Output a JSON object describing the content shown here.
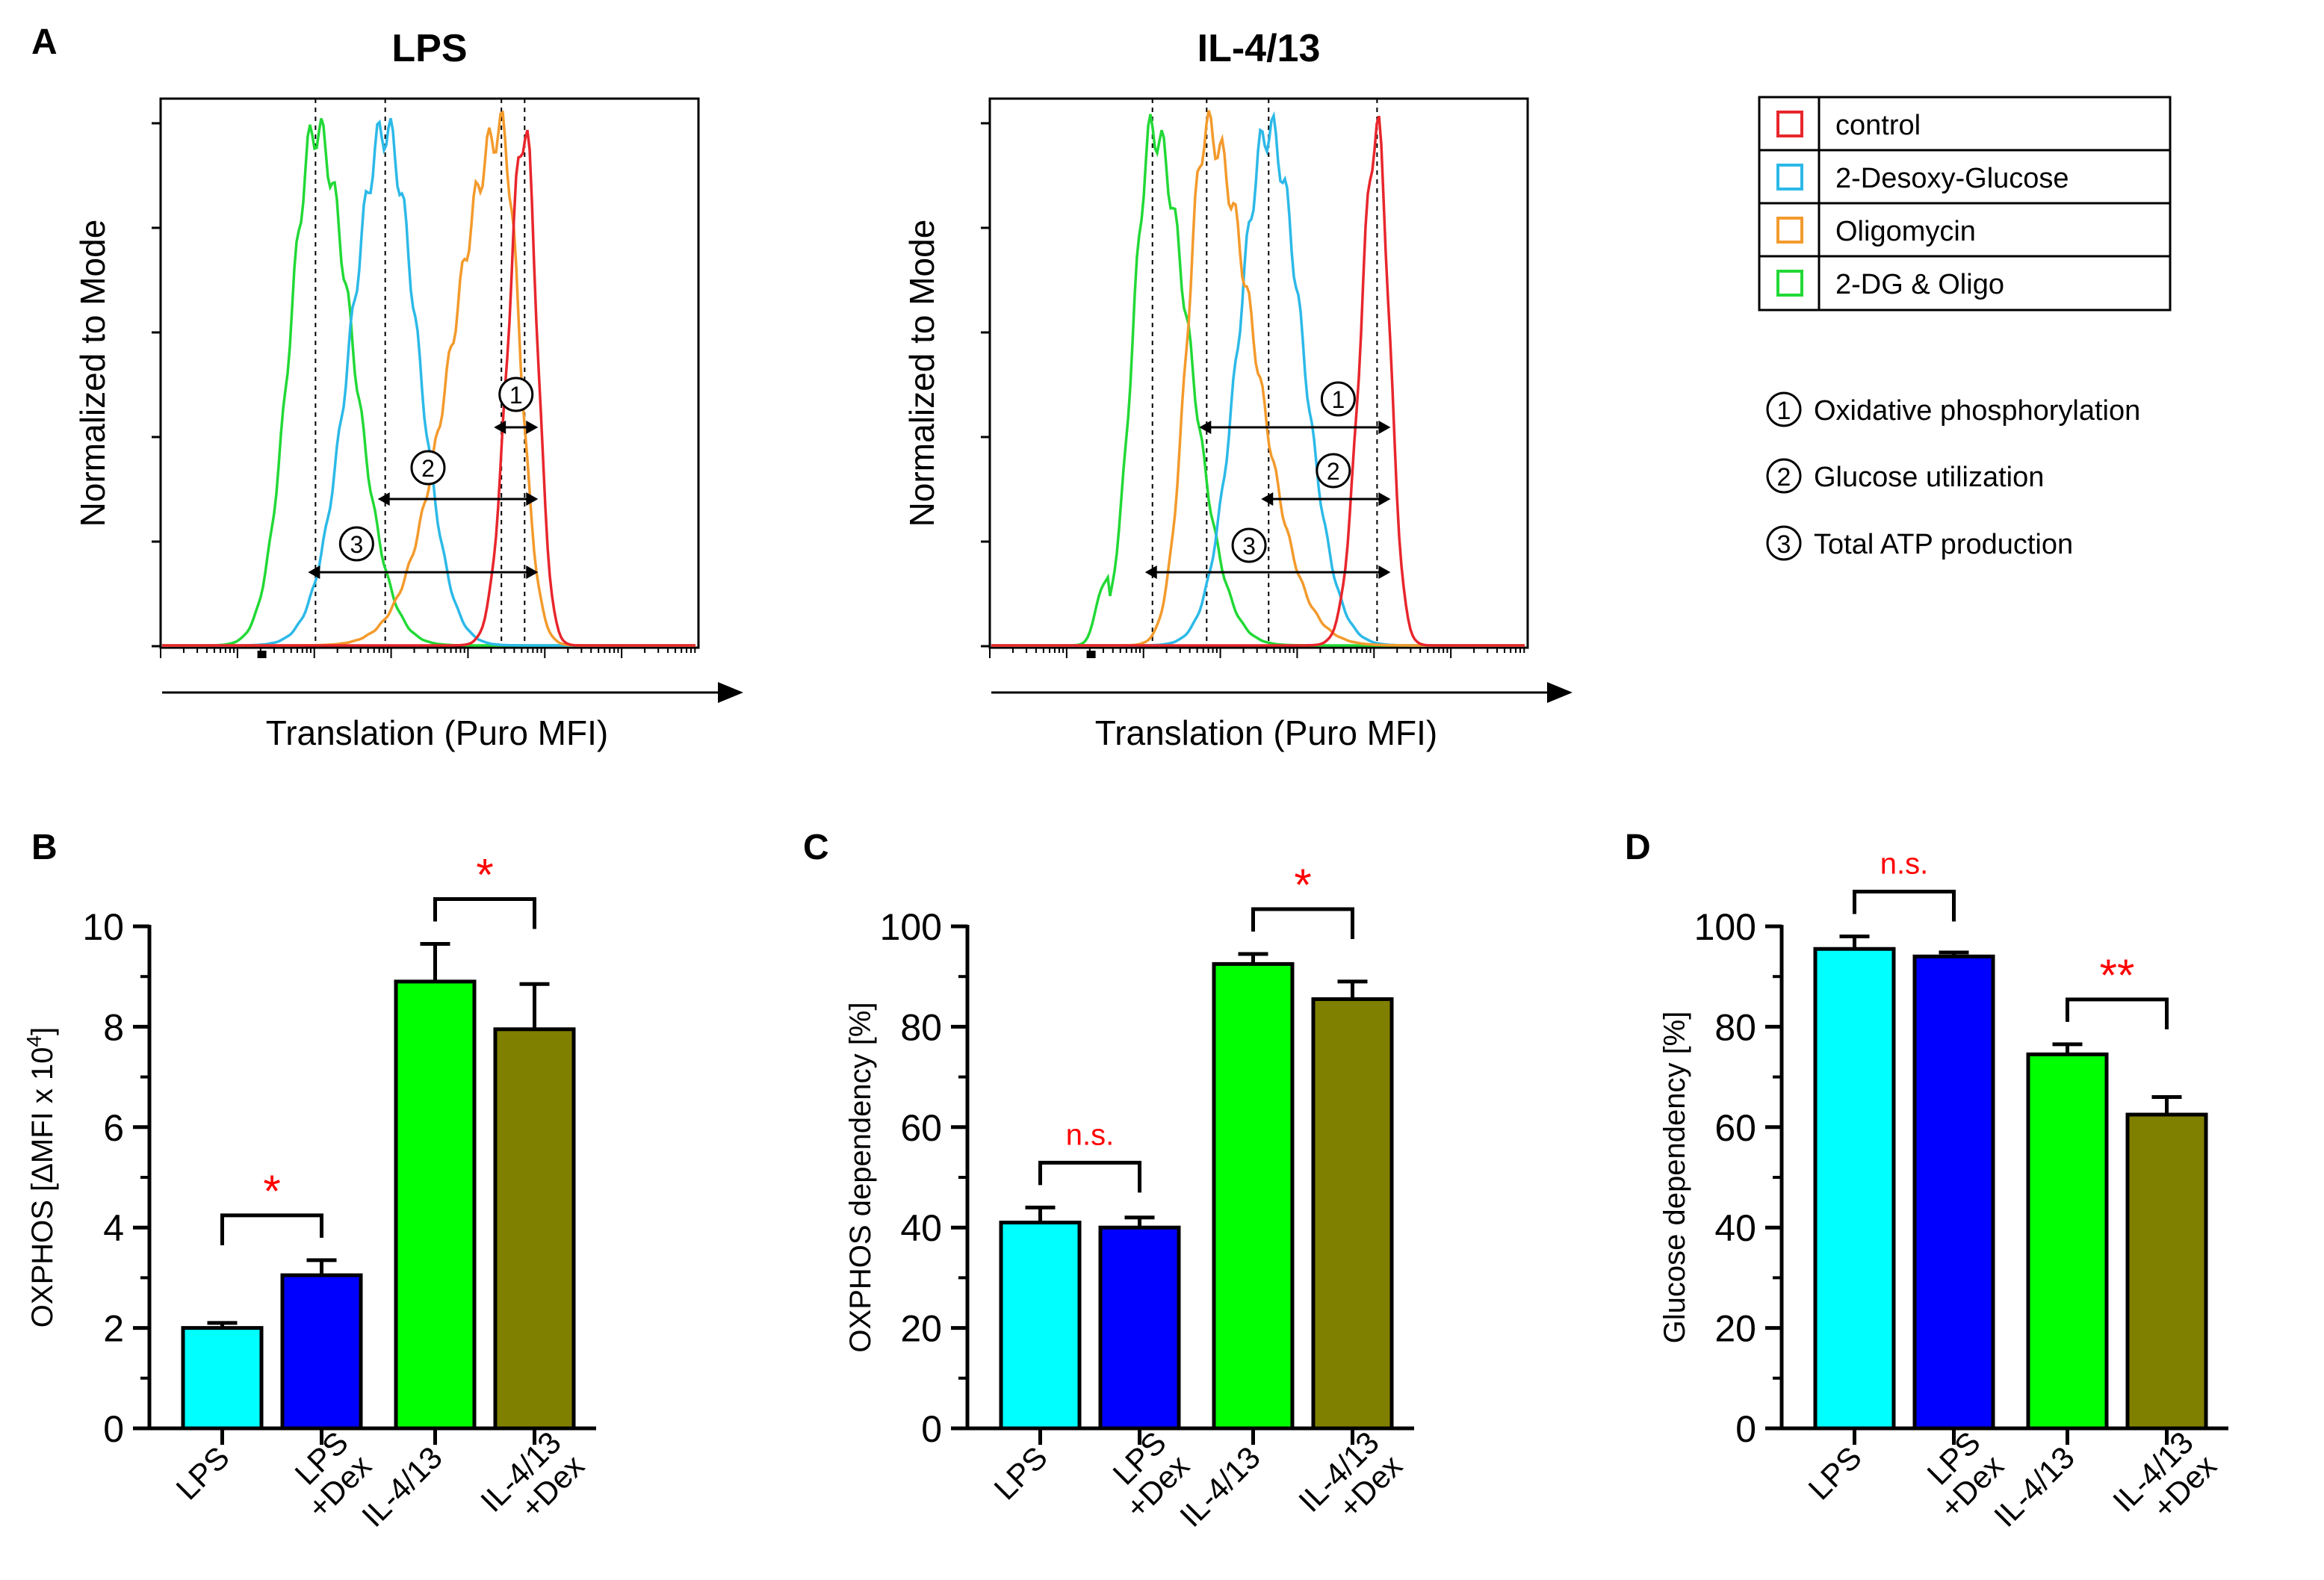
{
  "panel_labels": [
    "A",
    "B",
    "C",
    "D"
  ],
  "colors": {
    "control": "#e8262c",
    "desoxy": "#2cb9e8",
    "oligo": "#f39a2c",
    "dg_oligo": "#22d936",
    "bar_lps": "#00ffff",
    "bar_lps_dex": "#0000ff",
    "bar_il": "#00ff00",
    "bar_il_dex": "#808000",
    "sig": "#ff0000"
  },
  "legend": {
    "entries": [
      {
        "label": "control",
        "color": "#e8262c"
      },
      {
        "label": "2-Desoxy-Glucose",
        "color": "#2cb9e8"
      },
      {
        "label": "Oligomycin",
        "color": "#f39a2c"
      },
      {
        "label": "2-DG & Oligo",
        "color": "#22d936"
      }
    ],
    "numbered": [
      {
        "num": "1",
        "label": "Oxidative phosphorylation"
      },
      {
        "num": "2",
        "label": "Glucose utilization"
      },
      {
        "num": "3",
        "label": "Total ATP production"
      }
    ]
  },
  "chart_data": [
    {
      "panel": "A",
      "type": "histogram",
      "title": "LPS",
      "xlabel": "Translation (Puro MFI)",
      "ylabel": "Normalized to Mode",
      "xscale": "log",
      "peaks": [
        {
          "series": "2-DG & Oligo",
          "peak": 0.3
        },
        {
          "series": "2-Desoxy-Glucose",
          "peak": 0.39
        },
        {
          "series": "Oligomycin",
          "peak": 0.54
        },
        {
          "series": "control",
          "peak": 0.57
        }
      ],
      "arrows": [
        {
          "num": "1",
          "from_series": "Oligomycin",
          "to_series": "control"
        },
        {
          "num": "2",
          "from_series": "2-Desoxy-Glucose",
          "to_series": "control"
        },
        {
          "num": "3",
          "from_series": "2-DG & Oligo",
          "to_series": "control"
        }
      ]
    },
    {
      "panel": "A",
      "type": "histogram",
      "title": "IL-4/13",
      "xlabel": "Translation (Puro MFI)",
      "ylabel": "Normalized to Mode",
      "xscale": "log",
      "peaks": [
        {
          "series": "2-DG & Oligo",
          "peak": 0.31
        },
        {
          "series": "Oligomycin",
          "peak": 0.38
        },
        {
          "series": "2-Desoxy-Glucose",
          "peak": 0.46
        },
        {
          "series": "control",
          "peak": 0.6
        }
      ],
      "arrows": [
        {
          "num": "1",
          "from_series": "Oligomycin",
          "to_series": "control"
        },
        {
          "num": "2",
          "from_series": "2-Desoxy-Glucose",
          "to_series": "control"
        },
        {
          "num": "3",
          "from_series": "2-DG & Oligo",
          "to_series": "control"
        }
      ]
    },
    {
      "panel": "B",
      "type": "bar",
      "ylabel_prefix": "OXPHOS [",
      "ylabel_delta": "Δ",
      "ylabel_mid": "MFI x 10",
      "ylabel_sup": "4",
      "ylabel_suffix": "]",
      "ylim": [
        0,
        10
      ],
      "yticks": [
        "0",
        "2",
        "4",
        "6",
        "8",
        "10"
      ],
      "categories": [
        [
          "LPS"
        ],
        [
          "LPS",
          "+Dex"
        ],
        [
          "IL-4/13"
        ],
        [
          "IL-4/13",
          "+Dex"
        ]
      ],
      "values": [
        2.0,
        3.05,
        8.9,
        7.95
      ],
      "errors": [
        0.1,
        0.3,
        0.75,
        0.9
      ],
      "colors": [
        "#00ffff",
        "#0000ff",
        "#00ff00",
        "#808000"
      ],
      "significance": [
        {
          "pair": [
            0,
            1
          ],
          "label": "*"
        },
        {
          "pair": [
            2,
            3
          ],
          "label": "*"
        }
      ]
    },
    {
      "panel": "C",
      "type": "bar",
      "ylabel": "OXPHOS dependency [%]",
      "ylim": [
        0,
        100
      ],
      "yticks": [
        "0",
        "20",
        "40",
        "60",
        "80",
        "100"
      ],
      "categories": [
        [
          "LPS"
        ],
        [
          "LPS",
          "+Dex"
        ],
        [
          "IL-4/13"
        ],
        [
          "IL-4/13",
          "+Dex"
        ]
      ],
      "values": [
        41,
        40,
        92.5,
        85.5
      ],
      "errors": [
        3,
        2,
        2,
        3.5
      ],
      "colors": [
        "#00ffff",
        "#0000ff",
        "#00ff00",
        "#808000"
      ],
      "significance": [
        {
          "pair": [
            0,
            1
          ],
          "label": "n.s."
        },
        {
          "pair": [
            2,
            3
          ],
          "label": "*"
        }
      ]
    },
    {
      "panel": "D",
      "type": "bar",
      "ylabel": "Glucose dependency [%]",
      "ylim": [
        0,
        100
      ],
      "yticks": [
        "0",
        "20",
        "40",
        "60",
        "80",
        "100"
      ],
      "categories": [
        [
          "LPS"
        ],
        [
          "LPS",
          "+Dex"
        ],
        [
          "IL-4/13"
        ],
        [
          "IL-4/13",
          "+Dex"
        ]
      ],
      "values": [
        95.5,
        94,
        74.5,
        62.5
      ],
      "errors": [
        2.5,
        0.8,
        2,
        3.5
      ],
      "colors": [
        "#00ffff",
        "#0000ff",
        "#00ff00",
        "#808000"
      ],
      "significance": [
        {
          "pair": [
            0,
            1
          ],
          "label": "n.s."
        },
        {
          "pair": [
            2,
            3
          ],
          "label": "**"
        }
      ]
    }
  ]
}
